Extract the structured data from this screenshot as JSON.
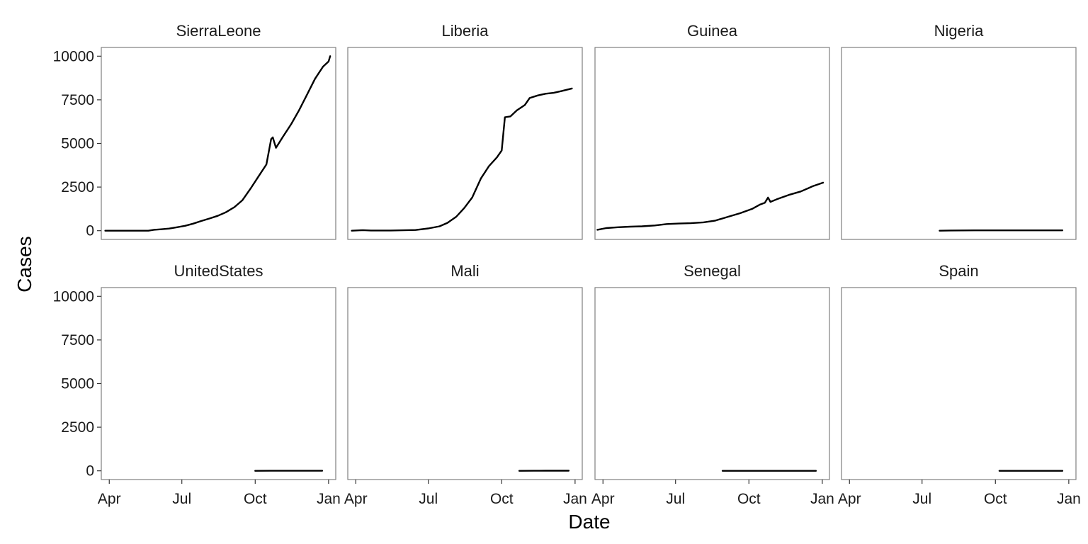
{
  "chart_data": {
    "type": "line",
    "facet": {
      "columns": 4,
      "rows": 2,
      "shared_axes": true
    },
    "xlabel": "Date",
    "ylabel": "Cases",
    "xlim": [
      "2014-03-22",
      "2015-01-10"
    ],
    "ylim": [
      -500,
      10500
    ],
    "x_ticks": [
      {
        "date": "2014-04-01",
        "label": "Apr"
      },
      {
        "date": "2014-07-01",
        "label": "Jul"
      },
      {
        "date": "2014-10-01",
        "label": "Oct"
      },
      {
        "date": "2015-01-01",
        "label": "Jan"
      }
    ],
    "y_ticks": [
      0,
      2500,
      5000,
      7500,
      10000
    ],
    "grid": false,
    "colors": {
      "line": "#000000",
      "panel_border": "#7f7f7f",
      "background": "#ffffff"
    },
    "panels": [
      {
        "title": "SierraLeone",
        "points": [
          [
            "2014-03-27",
            0
          ],
          [
            "2014-04-15",
            0
          ],
          [
            "2014-05-01",
            0
          ],
          [
            "2014-05-20",
            0
          ],
          [
            "2014-05-27",
            50
          ],
          [
            "2014-06-05",
            80
          ],
          [
            "2014-06-15",
            120
          ],
          [
            "2014-06-25",
            200
          ],
          [
            "2014-07-05",
            280
          ],
          [
            "2014-07-15",
            400
          ],
          [
            "2014-07-25",
            550
          ],
          [
            "2014-08-05",
            700
          ],
          [
            "2014-08-15",
            850
          ],
          [
            "2014-08-25",
            1050
          ],
          [
            "2014-09-05",
            1350
          ],
          [
            "2014-09-15",
            1750
          ],
          [
            "2014-09-25",
            2400
          ],
          [
            "2014-10-05",
            3100
          ],
          [
            "2014-10-15",
            3800
          ],
          [
            "2014-10-21",
            5250
          ],
          [
            "2014-10-23",
            5350
          ],
          [
            "2014-10-27",
            4750
          ],
          [
            "2014-11-05",
            5400
          ],
          [
            "2014-11-15",
            6100
          ],
          [
            "2014-11-25",
            6900
          ],
          [
            "2014-12-05",
            7800
          ],
          [
            "2014-12-15",
            8700
          ],
          [
            "2014-12-25",
            9400
          ],
          [
            "2015-01-01",
            9700
          ],
          [
            "2015-01-03",
            10000
          ]
        ]
      },
      {
        "title": "Liberia",
        "points": [
          [
            "2014-03-27",
            0
          ],
          [
            "2014-04-10",
            30
          ],
          [
            "2014-04-20",
            10
          ],
          [
            "2014-05-15",
            10
          ],
          [
            "2014-06-15",
            40
          ],
          [
            "2014-07-01",
            130
          ],
          [
            "2014-07-15",
            250
          ],
          [
            "2014-07-25",
            450
          ],
          [
            "2014-08-05",
            800
          ],
          [
            "2014-08-15",
            1300
          ],
          [
            "2014-08-25",
            1900
          ],
          [
            "2014-09-05",
            3000
          ],
          [
            "2014-09-15",
            3700
          ],
          [
            "2014-09-25",
            4200
          ],
          [
            "2014-10-01",
            4600
          ],
          [
            "2014-10-05",
            6500
          ],
          [
            "2014-10-12",
            6550
          ],
          [
            "2014-10-20",
            6900
          ],
          [
            "2014-10-30",
            7200
          ],
          [
            "2014-11-05",
            7600
          ],
          [
            "2014-11-15",
            7750
          ],
          [
            "2014-11-25",
            7850
          ],
          [
            "2014-12-05",
            7900
          ],
          [
            "2014-12-15",
            8000
          ],
          [
            "2014-12-28",
            8150
          ]
        ]
      },
      {
        "title": "Guinea",
        "points": [
          [
            "2014-03-25",
            50
          ],
          [
            "2014-04-05",
            150
          ],
          [
            "2014-04-20",
            200
          ],
          [
            "2014-05-05",
            230
          ],
          [
            "2014-05-20",
            250
          ],
          [
            "2014-06-05",
            300
          ],
          [
            "2014-06-20",
            380
          ],
          [
            "2014-07-05",
            410
          ],
          [
            "2014-07-20",
            430
          ],
          [
            "2014-08-05",
            480
          ],
          [
            "2014-08-20",
            580
          ],
          [
            "2014-09-05",
            800
          ],
          [
            "2014-09-20",
            1000
          ],
          [
            "2014-10-05",
            1250
          ],
          [
            "2014-10-15",
            1500
          ],
          [
            "2014-10-21",
            1600
          ],
          [
            "2014-10-25",
            1900
          ],
          [
            "2014-10-28",
            1650
          ],
          [
            "2014-11-05",
            1800
          ],
          [
            "2014-11-20",
            2050
          ],
          [
            "2014-12-05",
            2250
          ],
          [
            "2014-12-20",
            2550
          ],
          [
            "2015-01-02",
            2750
          ]
        ]
      },
      {
        "title": "Nigeria",
        "points": [
          [
            "2014-07-23",
            0
          ],
          [
            "2014-08-05",
            10
          ],
          [
            "2014-08-20",
            15
          ],
          [
            "2014-09-05",
            20
          ],
          [
            "2014-10-05",
            20
          ],
          [
            "2014-11-15",
            20
          ],
          [
            "2014-12-24",
            20
          ]
        ]
      },
      {
        "title": "UnitedStates",
        "points": [
          [
            "2014-10-01",
            1
          ],
          [
            "2014-10-20",
            2
          ],
          [
            "2014-11-20",
            4
          ],
          [
            "2014-12-24",
            4
          ]
        ]
      },
      {
        "title": "Mali",
        "points": [
          [
            "2014-10-23",
            1
          ],
          [
            "2014-11-10",
            2
          ],
          [
            "2014-11-25",
            7
          ],
          [
            "2014-12-05",
            8
          ],
          [
            "2014-12-24",
            8
          ]
        ]
      },
      {
        "title": "Senegal",
        "points": [
          [
            "2014-08-29",
            1
          ],
          [
            "2014-10-20",
            1
          ],
          [
            "2014-12-24",
            1
          ]
        ]
      },
      {
        "title": "Spain",
        "points": [
          [
            "2014-10-06",
            1
          ],
          [
            "2014-11-15",
            1
          ],
          [
            "2014-12-24",
            1
          ]
        ]
      }
    ]
  }
}
